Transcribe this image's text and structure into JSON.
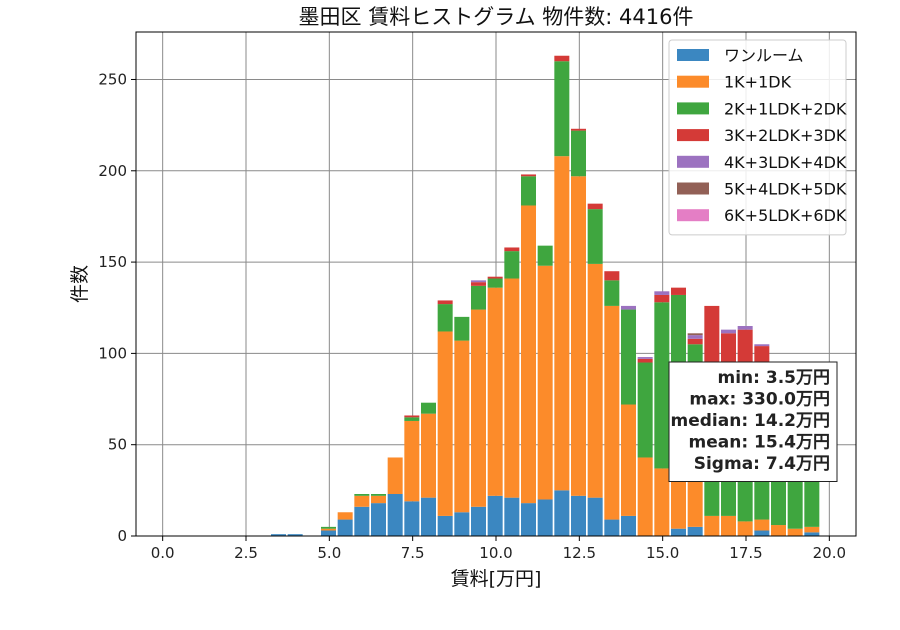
{
  "chart_data": {
    "type": "bar",
    "stacked": true,
    "title": "墨田区 賃料ヒストグラム 物件数: 4416件",
    "xlabel": "賃料[万円]",
    "ylabel": "件数",
    "xlim": [
      -0.8,
      20.8
    ],
    "ylim": [
      0,
      276
    ],
    "xticks": [
      "0.0",
      "2.5",
      "5.0",
      "7.5",
      "10.0",
      "12.5",
      "15.0",
      "17.5",
      "20.0"
    ],
    "yticks": [
      "0",
      "50",
      "100",
      "150",
      "200",
      "250"
    ],
    "grid": true,
    "legend_position": "top-right",
    "bin_width": 0.5,
    "x": [
      3.5,
      4.0,
      4.5,
      5.0,
      5.5,
      6.0,
      6.5,
      7.0,
      7.5,
      8.0,
      8.5,
      9.0,
      9.5,
      10.0,
      10.5,
      11.0,
      11.5,
      12.0,
      12.5,
      13.0,
      13.5,
      14.0,
      14.5,
      15.0,
      15.5,
      16.0,
      16.5,
      17.0,
      17.5,
      18.0,
      18.5,
      19.0,
      19.5
    ],
    "series": [
      {
        "name": "ワンルーム",
        "color": "#3b87c1",
        "values": [
          1,
          1,
          0,
          3,
          9,
          16,
          18,
          23,
          19,
          21,
          11,
          13,
          16,
          22,
          21,
          18,
          20,
          25,
          22,
          21,
          9,
          11,
          0,
          0,
          4,
          5,
          0,
          0,
          0,
          3,
          0,
          0,
          2
        ]
      },
      {
        "name": "1K+1DK",
        "color": "#fc8b2a",
        "values": [
          0,
          0,
          0,
          1,
          4,
          6,
          4,
          20,
          44,
          46,
          101,
          94,
          108,
          114,
          120,
          163,
          128,
          183,
          175,
          128,
          117,
          61,
          43,
          37,
          27,
          25,
          11,
          11,
          8,
          6,
          6,
          4,
          3
        ]
      },
      {
        "name": "2K+1LDK+2DK",
        "color": "#3fa63f",
        "values": [
          0,
          0,
          0,
          1,
          0,
          1,
          1,
          0,
          2,
          6,
          15,
          13,
          13,
          5,
          15,
          16,
          11,
          52,
          25,
          30,
          14,
          52,
          52,
          91,
          101,
          75,
          50,
          60,
          80,
          75,
          82,
          80,
          60
        ]
      },
      {
        "name": "3K+2LDK+3DK",
        "color": "#d43a37",
        "values": [
          0,
          0,
          0,
          0,
          0,
          0,
          0,
          0,
          1,
          0,
          2,
          0,
          2,
          1,
          2,
          1,
          0,
          3,
          1,
          3,
          5,
          0,
          2,
          4,
          4,
          3,
          65,
          40,
          25,
          20,
          0,
          0,
          0
        ]
      },
      {
        "name": "4K+3LDK+4DK",
        "color": "#9c72c0",
        "values": [
          0,
          0,
          0,
          0,
          0,
          0,
          0,
          0,
          0,
          0,
          0,
          0,
          1,
          0,
          0,
          0,
          0,
          0,
          0,
          0,
          0,
          2,
          1,
          2,
          0,
          2,
          0,
          2,
          2,
          1,
          2,
          0,
          0
        ]
      },
      {
        "name": "5K+4LDK+5DK",
        "color": "#926056",
        "values": [
          0,
          0,
          0,
          0,
          0,
          0,
          0,
          0,
          0,
          0,
          0,
          0,
          0,
          0,
          0,
          0,
          0,
          0,
          0,
          0,
          0,
          0,
          0,
          0,
          0,
          1,
          0,
          0,
          0,
          0,
          0,
          0,
          0
        ]
      },
      {
        "name": "6K+5LDK+6DK",
        "color": "#e47ec5",
        "values": [
          0,
          0,
          0,
          0,
          0,
          0,
          0,
          0,
          0,
          0,
          0,
          0,
          0,
          0,
          0,
          0,
          0,
          0,
          0,
          0,
          0,
          0,
          0,
          0,
          0,
          0,
          0,
          0,
          0,
          0,
          0,
          0,
          0
        ]
      }
    ],
    "stats": [
      "min: 3.5万円",
      "max: 330.0万円",
      "median: 14.2万円",
      "mean: 15.4万円",
      "Sigma: 7.4万円"
    ]
  }
}
